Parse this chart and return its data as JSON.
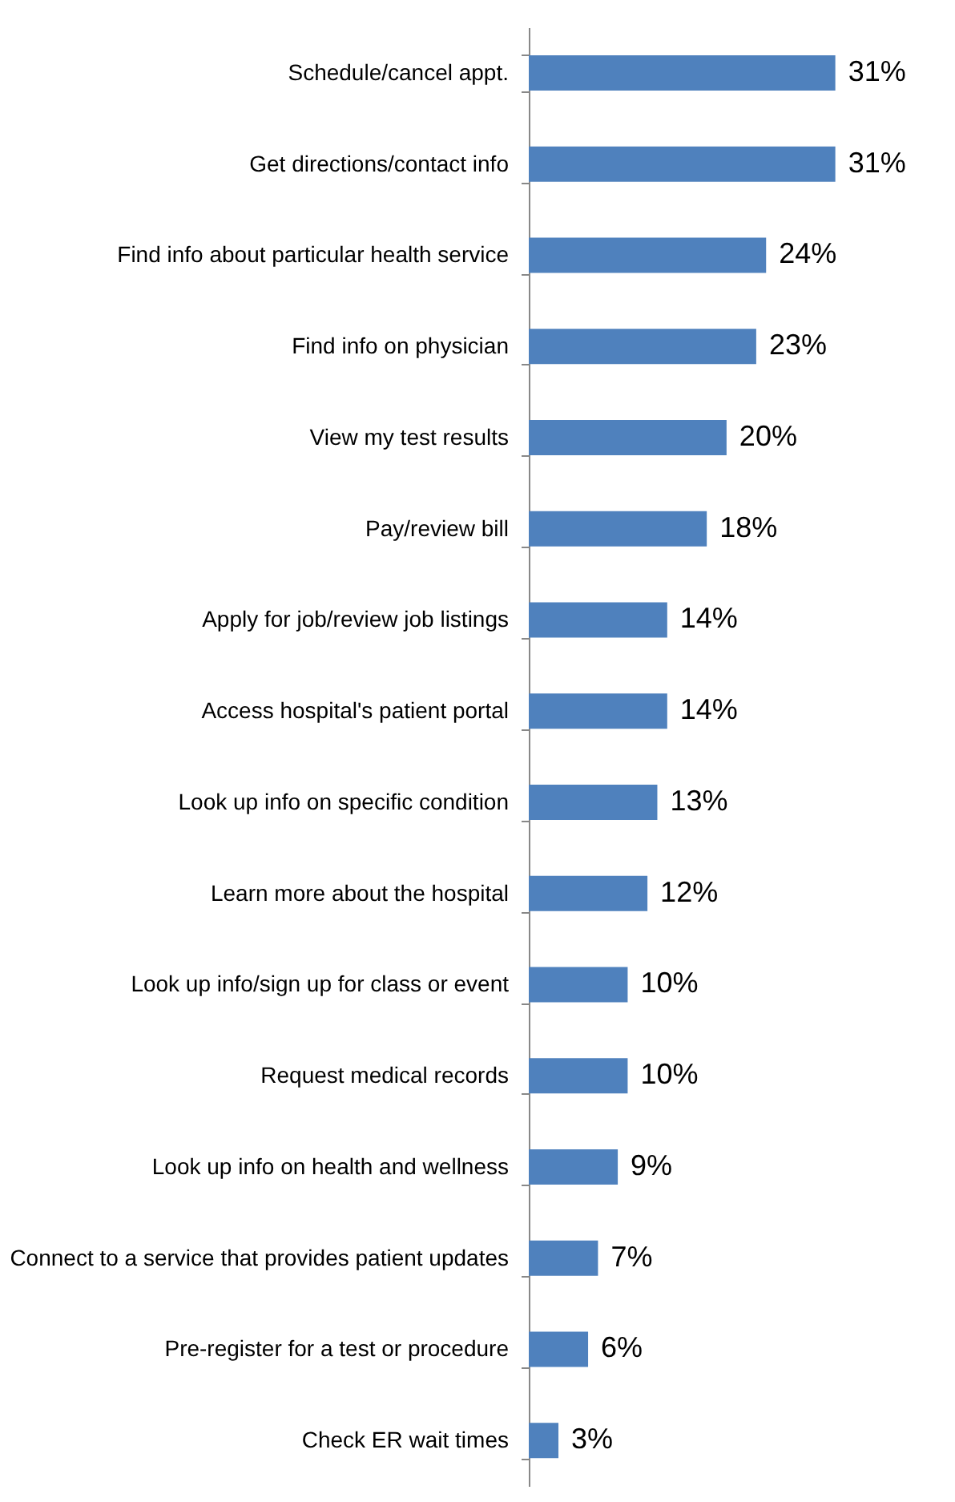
{
  "chart_data": {
    "type": "bar",
    "orientation": "horizontal",
    "color": "#4f81bd",
    "categories": [
      "Schedule/cancel appt.",
      "Get directions/contact info",
      "Find info about particular health service",
      "Find info on physician",
      "View my test results",
      "Pay/review bill",
      "Apply for job/review job listings",
      "Access hospital's patient portal",
      "Look up info on specific condition",
      "Learn more about the hospital",
      "Look up info/sign up for class or event",
      "Request medical records",
      "Look up info on health and wellness",
      "Connect to a service that provides patient updates",
      "Pre-register for a test or procedure",
      "Check ER wait times"
    ],
    "values": [
      31,
      31,
      24,
      23,
      20,
      18,
      14,
      14,
      13,
      12,
      10,
      10,
      9,
      7,
      6,
      3
    ],
    "value_labels": [
      "31%",
      "31%",
      "24%",
      "23%",
      "20%",
      "18%",
      "14%",
      "14%",
      "13%",
      "12%",
      "10%",
      "10%",
      "9%",
      "7%",
      "6%",
      "3%"
    ],
    "grid": false
  }
}
